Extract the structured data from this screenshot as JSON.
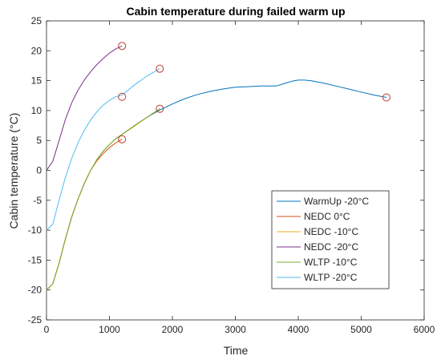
{
  "chart_data": {
    "type": "line",
    "title": "Cabin temperature during failed warm up",
    "xlabel": "Time",
    "ylabel": "Cabin temperature (°C)",
    "xlim": [
      0,
      6000
    ],
    "ylim": [
      -25,
      25
    ],
    "xticks": [
      0,
      1000,
      2000,
      3000,
      4000,
      5000,
      6000
    ],
    "yticks": [
      -25,
      -20,
      -15,
      -10,
      -5,
      0,
      5,
      10,
      15,
      20,
      25
    ],
    "grid": false,
    "legend_position": "bottom-right",
    "series": [
      {
        "name": "WarmUp -20°C",
        "color": "#0072BD",
        "x": [
          0,
          100,
          200,
          300,
          400,
          500,
          600,
          700,
          800,
          900,
          1000,
          1100,
          1200,
          1400,
          1600,
          1800,
          2000,
          2200,
          2400,
          2600,
          2800,
          3000,
          3200,
          3400,
          3650,
          3800,
          3900,
          4000,
          4100,
          4200,
          4400,
          4600,
          4800,
          5000,
          5200,
          5400
        ],
        "y": [
          -20,
          -19,
          -15.5,
          -11.5,
          -7.8,
          -4.8,
          -2.2,
          0,
          1.8,
          3.2,
          4.3,
          5.3,
          6,
          7.5,
          8.9,
          10.1,
          11.1,
          12,
          12.7,
          13.2,
          13.6,
          13.9,
          14,
          14.1,
          14.1,
          14.6,
          14.9,
          15.1,
          15.1,
          15,
          14.6,
          14.1,
          13.6,
          13.1,
          12.6,
          12.2
        ]
      },
      {
        "name": "NEDC 0°C",
        "color": "#D95319",
        "x": [
          0,
          100,
          200,
          300,
          400,
          500,
          600,
          700,
          800,
          900,
          1000,
          1100,
          1200
        ],
        "y": [
          -20,
          -19,
          -15.5,
          -11.5,
          -7.8,
          -4.8,
          -2.2,
          0,
          1.6,
          2.8,
          3.8,
          4.6,
          5.2
        ]
      },
      {
        "name": "NEDC -10°C",
        "color": "#EDB120",
        "x": [
          0,
          100,
          200,
          300,
          400,
          500,
          600,
          700,
          800,
          900,
          1000,
          1100,
          1200,
          1400,
          1600,
          1800
        ],
        "y": [
          -20,
          -19,
          -15.5,
          -11.5,
          -7.8,
          -4.8,
          -2.2,
          0,
          1.8,
          3.2,
          4.3,
          5.3,
          6,
          7.4,
          8.9,
          10.3
        ]
      },
      {
        "name": "NEDC -20°C",
        "color": "#7E2F8E",
        "x": [
          0,
          100,
          200,
          300,
          400,
          500,
          600,
          700,
          800,
          900,
          1000,
          1100,
          1200
        ],
        "y": [
          0,
          1.5,
          5,
          8.5,
          11.3,
          13.4,
          15.1,
          16.5,
          17.7,
          18.7,
          19.6,
          20.3,
          20.8
        ]
      },
      {
        "name": "WLTP -10°C",
        "color": "#77AC30",
        "x": [
          0,
          100,
          200,
          300,
          400,
          500,
          600,
          700,
          800,
          900,
          1000,
          1100,
          1200,
          1400,
          1600,
          1800
        ],
        "y": [
          -20,
          -19,
          -15.5,
          -11.5,
          -7.8,
          -4.8,
          -2.2,
          0,
          1.8,
          3.2,
          4.3,
          5.3,
          6,
          7.5,
          8.9,
          10.3
        ]
      },
      {
        "name": "WLTP -20°C",
        "color": "#4DBEEE",
        "x": [
          0,
          100,
          200,
          300,
          400,
          500,
          600,
          700,
          800,
          900,
          1000,
          1100,
          1200,
          1400,
          1600,
          1800
        ],
        "y": [
          -10,
          -9,
          -5,
          -1.2,
          2,
          4.6,
          6.7,
          8.4,
          9.8,
          10.9,
          11.7,
          12.3,
          12.6,
          14.3,
          15.8,
          17
        ]
      }
    ],
    "markers": {
      "color": "#C0392B",
      "points": [
        {
          "x": 1200,
          "y": 20.8
        },
        {
          "x": 1800,
          "y": 17
        },
        {
          "x": 1200,
          "y": 12.3
        },
        {
          "x": 1800,
          "y": 10.3
        },
        {
          "x": 1200,
          "y": 5.2
        },
        {
          "x": 5400,
          "y": 12.2
        }
      ]
    }
  }
}
